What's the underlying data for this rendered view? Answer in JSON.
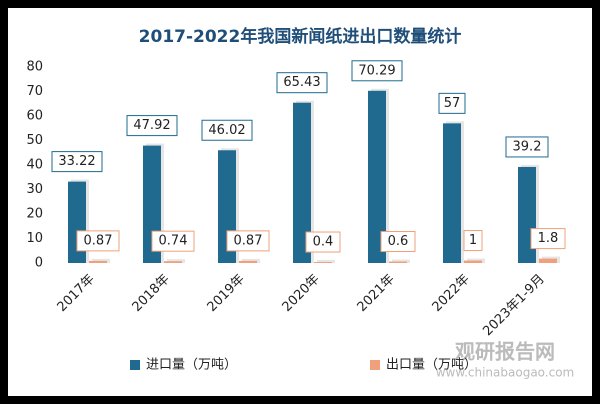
{
  "chart_data": {
    "type": "bar",
    "title": "2017-2022年我国新闻纸进出口数量统计",
    "categories": [
      "2017年",
      "2018年",
      "2019年",
      "2020年",
      "2021年",
      "2022年",
      "2023年1-9月"
    ],
    "series": [
      {
        "name": "进口量（万吨）",
        "color": "#1f6a8e",
        "values": [
          33.22,
          47.92,
          46.02,
          65.43,
          70.29,
          57,
          39.2
        ]
      },
      {
        "name": "出口量（万吨）",
        "color": "#f0a07c",
        "values": [
          0.87,
          0.74,
          0.87,
          0.4,
          0.6,
          1,
          1.8
        ]
      }
    ],
    "ylim": [
      0,
      80
    ],
    "yticks": [
      0,
      10,
      20,
      30,
      40,
      50,
      60,
      70,
      80
    ],
    "grid": false,
    "legend": "bottom",
    "watermark": [
      "观研报告网",
      "www.chinabaogao.com"
    ]
  }
}
